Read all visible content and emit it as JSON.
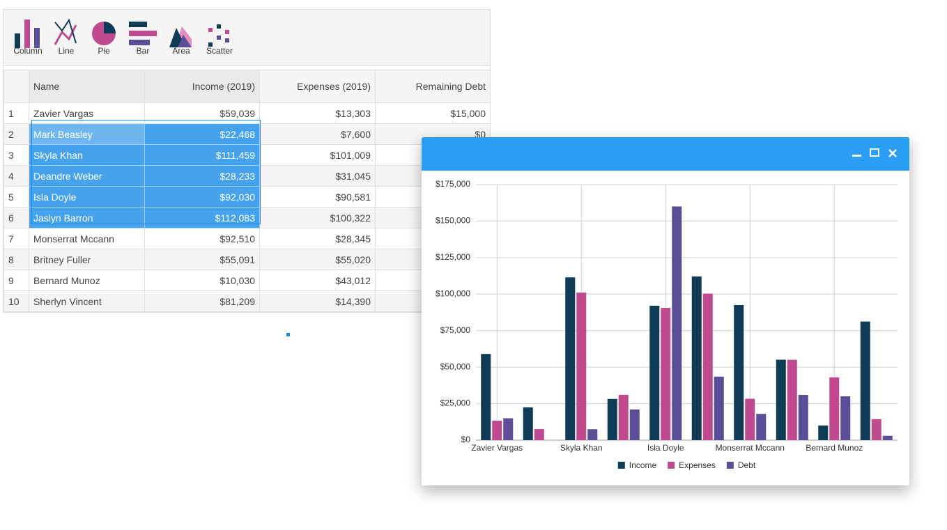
{
  "toolbar": [
    "Column",
    "Line",
    "Pie",
    "Bar",
    "Area",
    "Scatter"
  ],
  "table": {
    "header": [
      "Name",
      "Income (2019)",
      "Expenses (2019)",
      "Remaining Debt"
    ],
    "rows": [
      [
        "1",
        "Zavier Vargas",
        "$59,039",
        "$13,303",
        "$15,000"
      ],
      [
        "2",
        "Mark Beasley",
        "$22,468",
        "$7,600",
        "$0"
      ],
      [
        "3",
        "Skyla Khan",
        "$111,459",
        "$101,009"
      ],
      [
        "4",
        "Deandre Weber",
        "$28,233",
        "$31,045"
      ],
      [
        "5",
        "Isla Doyle",
        "$92,030",
        "$90,581"
      ],
      [
        "6",
        "Jaslyn Barron",
        "$112,083",
        "$100,322"
      ],
      [
        "7",
        "Monserrat Mccann",
        "$92,510",
        "$28,345"
      ],
      [
        "8",
        "Britney Fuller",
        "$55,091",
        "$55,020"
      ],
      [
        "9",
        "Bernard Munoz",
        "$10,030",
        "$43,012"
      ],
      [
        "10",
        "Sherlyn Vincent",
        "$81,209",
        "$14,390"
      ]
    ]
  },
  "chart_data": {
    "type": "bar",
    "categories": [
      "Zavier Vargas",
      null,
      "Skyla Khan",
      null,
      "Isla Doyle",
      null,
      "Monserrat Mccann",
      null,
      "Bernard Munoz",
      null
    ],
    "series": [
      {
        "name": "Income",
        "color": "#0f3b57",
        "values": [
          59039,
          22468,
          111459,
          28233,
          92030,
          112083,
          92510,
          55091,
          10030,
          81209
        ]
      },
      {
        "name": "Expenses",
        "color": "#c04a8f",
        "values": [
          13303,
          7600,
          101009,
          31045,
          90581,
          100322,
          28345,
          55020,
          43012,
          14390
        ]
      },
      {
        "name": "Debt",
        "color": "#5b4d96",
        "values": [
          15000,
          0,
          7500,
          21000,
          160000,
          43500,
          18000,
          31000,
          30000,
          3000
        ]
      }
    ],
    "ylim": [
      0,
      175000
    ],
    "yticks": [
      {
        "value": 0,
        "label": "$0"
      },
      {
        "value": 25000,
        "label": "$25,000"
      },
      {
        "value": 50000,
        "label": "$50,000"
      },
      {
        "value": 75000,
        "label": "$75,000"
      },
      {
        "value": 100000,
        "label": "$100,000"
      },
      {
        "value": 125000,
        "label": "$125,000"
      },
      {
        "value": 150000,
        "label": "$150,000"
      },
      {
        "value": 175000,
        "label": "$175,000"
      }
    ],
    "grid": true
  }
}
